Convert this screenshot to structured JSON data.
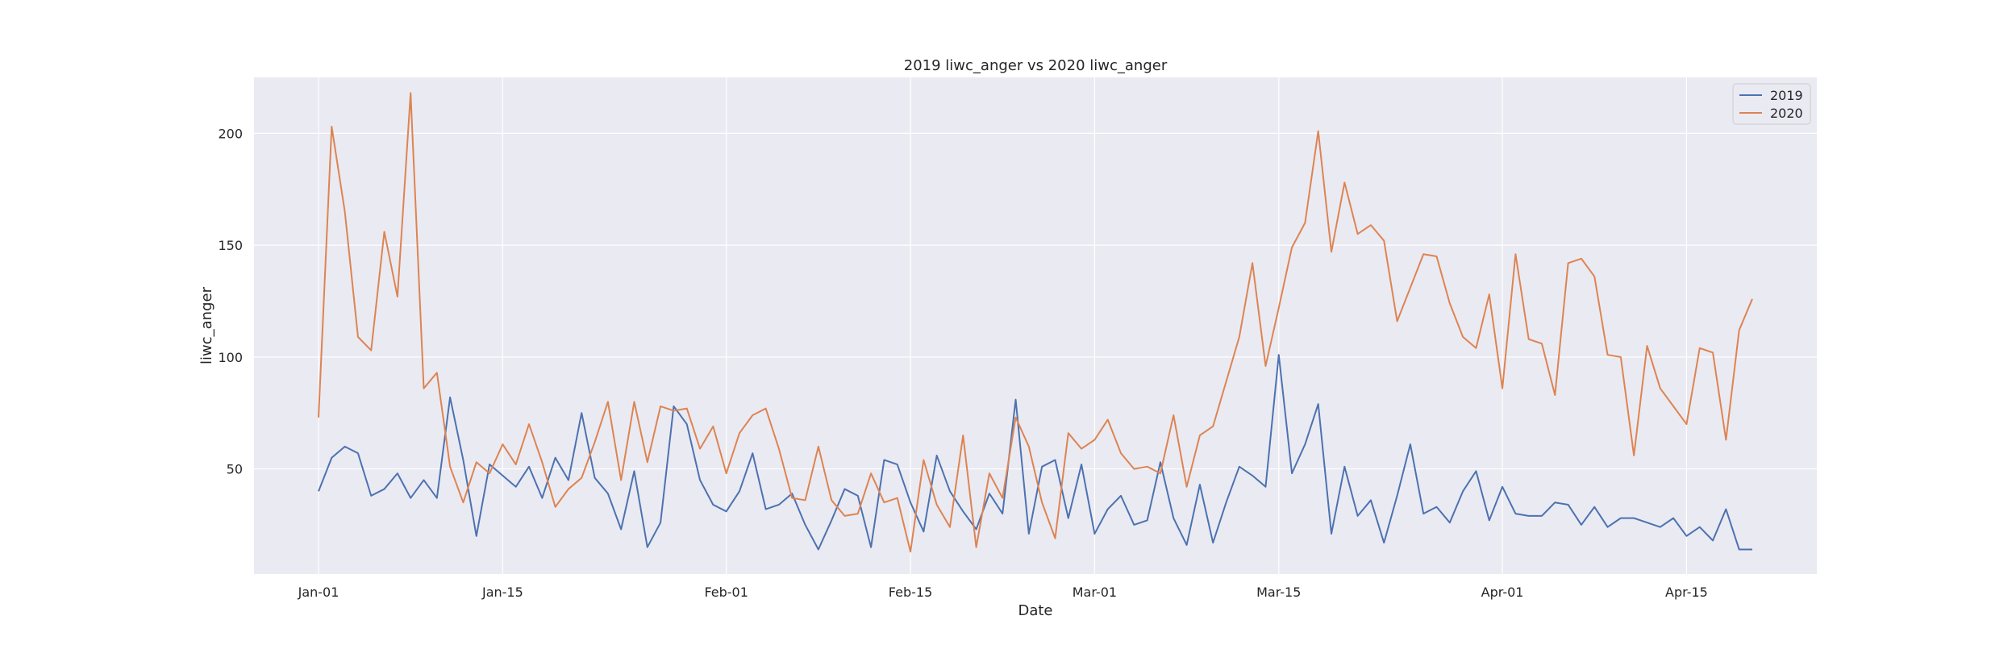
{
  "chart_data": {
    "type": "line",
    "title": "2019 liwc_anger vs 2020 liwc_anger",
    "xlabel": "Date",
    "ylabel": "liwc_anger",
    "x_start": "Jan-01",
    "x_ticks": [
      "Jan-01",
      "Jan-15",
      "Feb-01",
      "Feb-15",
      "Mar-01",
      "Mar-15",
      "Apr-01",
      "Apr-15"
    ],
    "y_ticks": [
      50,
      100,
      150,
      200
    ],
    "ylim": [
      3,
      225
    ],
    "grid": true,
    "legend_position": "top-right",
    "colors": {
      "background": "#eaeaf2",
      "grid": "#ffffff"
    },
    "series": [
      {
        "name": "2019",
        "color": "#4c72b0",
        "values": [
          40,
          55,
          60,
          57,
          38,
          41,
          48,
          37,
          45,
          37,
          82,
          54,
          20,
          52,
          47,
          42,
          51,
          37,
          55,
          45,
          75,
          46,
          39,
          23,
          49,
          15,
          26,
          78,
          70,
          45,
          34,
          31,
          40,
          57,
          32,
          34,
          39,
          25,
          14,
          27,
          41,
          38,
          15,
          54,
          52,
          35,
          22,
          56,
          40,
          31,
          23,
          39,
          30,
          81,
          21,
          51,
          54,
          28,
          52,
          21,
          32,
          38,
          25,
          27,
          53,
          28,
          16,
          43,
          17,
          35,
          51,
          47,
          42,
          101,
          48,
          61,
          79,
          21,
          51,
          29,
          36,
          17,
          38,
          61,
          30,
          33,
          26,
          40,
          49,
          27,
          42,
          30,
          29,
          29,
          35,
          34,
          25,
          33,
          24,
          28,
          28,
          26,
          24,
          28,
          20,
          24,
          18,
          32,
          14,
          14
        ],
        "x": [
          "Jan-01",
          "Jan-02",
          "Jan-03",
          "Jan-04",
          "Jan-05",
          "Jan-06",
          "Jan-07",
          "Jan-08",
          "Jan-09",
          "Jan-10",
          "Jan-11",
          "Jan-12",
          "Jan-13",
          "Jan-14",
          "Jan-15",
          "Jan-16",
          "Jan-17",
          "Jan-18",
          "Jan-19",
          "Jan-20",
          "Jan-21",
          "Jan-22",
          "Jan-23",
          "Jan-24",
          "Jan-25",
          "Jan-26",
          "Jan-27",
          "Jan-28",
          "Jan-29",
          "Jan-30",
          "Jan-31",
          "Feb-01",
          "Feb-02",
          "Feb-03",
          "Feb-04",
          "Feb-05",
          "Feb-06",
          "Feb-07",
          "Feb-08",
          "Feb-09",
          "Feb-10",
          "Feb-11",
          "Feb-12",
          "Feb-13",
          "Feb-14",
          "Feb-15",
          "Feb-16",
          "Feb-17",
          "Feb-18",
          "Feb-19",
          "Feb-20",
          "Feb-21",
          "Feb-22",
          "Feb-23",
          "Feb-24",
          "Feb-25",
          "Feb-26",
          "Feb-27",
          "Feb-28",
          "Mar-01",
          "Mar-02",
          "Mar-03",
          "Mar-04",
          "Mar-05",
          "Mar-06",
          "Mar-07",
          "Mar-08",
          "Mar-09",
          "Mar-10",
          "Mar-11",
          "Mar-12",
          "Mar-13",
          "Mar-14",
          "Mar-15",
          "Mar-16",
          "Mar-17",
          "Mar-18",
          "Mar-19",
          "Mar-20",
          "Mar-21",
          "Mar-22",
          "Mar-23",
          "Mar-24",
          "Mar-25",
          "Mar-26",
          "Mar-27",
          "Mar-28",
          "Mar-29",
          "Mar-30",
          "Mar-31",
          "Apr-01",
          "Apr-02",
          "Apr-03",
          "Apr-04",
          "Apr-05",
          "Apr-06",
          "Apr-07",
          "Apr-08",
          "Apr-09",
          "Apr-10",
          "Apr-11",
          "Apr-12",
          "Apr-13",
          "Apr-14",
          "Apr-15",
          "Apr-16",
          "Apr-17",
          "Apr-18",
          "Apr-19",
          "Apr-20"
        ]
      },
      {
        "name": "2020",
        "color": "#dd8452",
        "values": [
          73,
          203,
          165,
          109,
          103,
          156,
          127,
          218,
          86,
          93,
          51,
          35,
          53,
          48,
          61,
          52,
          70,
          53,
          33,
          41,
          46,
          62,
          80,
          45,
          80,
          53,
          78,
          76,
          77,
          59,
          69,
          48,
          66,
          74,
          77,
          59,
          37,
          36,
          60,
          36,
          29,
          30,
          48,
          35,
          37,
          13,
          54,
          34,
          24,
          65,
          15,
          48,
          37,
          73,
          60,
          35,
          19,
          66,
          59,
          63,
          72,
          57,
          50,
          51,
          48,
          74,
          42,
          65,
          69,
          89,
          109,
          142,
          96,
          122,
          149,
          160,
          201,
          147,
          178,
          155,
          159,
          152,
          116,
          131,
          146,
          145,
          124,
          109,
          104,
          128,
          86,
          146,
          108,
          106,
          83,
          142,
          144,
          136,
          101,
          100,
          56,
          105,
          86,
          78,
          70,
          104,
          102,
          63,
          112,
          126
        ],
        "x": [
          "Jan-01",
          "Jan-02",
          "Jan-03",
          "Jan-04",
          "Jan-05",
          "Jan-06",
          "Jan-07",
          "Jan-08",
          "Jan-09",
          "Jan-10",
          "Jan-11",
          "Jan-12",
          "Jan-13",
          "Jan-14",
          "Jan-15",
          "Jan-16",
          "Jan-17",
          "Jan-18",
          "Jan-19",
          "Jan-20",
          "Jan-21",
          "Jan-22",
          "Jan-23",
          "Jan-24",
          "Jan-25",
          "Jan-26",
          "Jan-27",
          "Jan-28",
          "Jan-29",
          "Jan-30",
          "Jan-31",
          "Feb-01",
          "Feb-02",
          "Feb-03",
          "Feb-04",
          "Feb-05",
          "Feb-06",
          "Feb-07",
          "Feb-08",
          "Feb-09",
          "Feb-10",
          "Feb-11",
          "Feb-12",
          "Feb-13",
          "Feb-14",
          "Feb-15",
          "Feb-16",
          "Feb-17",
          "Feb-18",
          "Feb-19",
          "Feb-20",
          "Feb-21",
          "Feb-22",
          "Feb-23",
          "Feb-24",
          "Feb-25",
          "Feb-26",
          "Feb-27",
          "Feb-28",
          "Mar-01",
          "Mar-02",
          "Mar-03",
          "Mar-04",
          "Mar-05",
          "Mar-06",
          "Mar-07",
          "Mar-08",
          "Mar-09",
          "Mar-10",
          "Mar-11",
          "Mar-12",
          "Mar-13",
          "Mar-14",
          "Mar-15",
          "Mar-16",
          "Mar-17",
          "Mar-18",
          "Mar-19",
          "Mar-20",
          "Mar-21",
          "Mar-22",
          "Mar-23",
          "Mar-24",
          "Mar-25",
          "Mar-26",
          "Mar-27",
          "Mar-28",
          "Mar-29",
          "Mar-30",
          "Mar-31",
          "Apr-01",
          "Apr-02",
          "Apr-03",
          "Apr-04",
          "Apr-05",
          "Apr-06",
          "Apr-07",
          "Apr-08",
          "Apr-09",
          "Apr-10",
          "Apr-11",
          "Apr-12",
          "Apr-13",
          "Apr-14",
          "Apr-15",
          "Apr-16",
          "Apr-17",
          "Apr-18",
          "Apr-19",
          "Apr-20"
        ]
      }
    ]
  }
}
